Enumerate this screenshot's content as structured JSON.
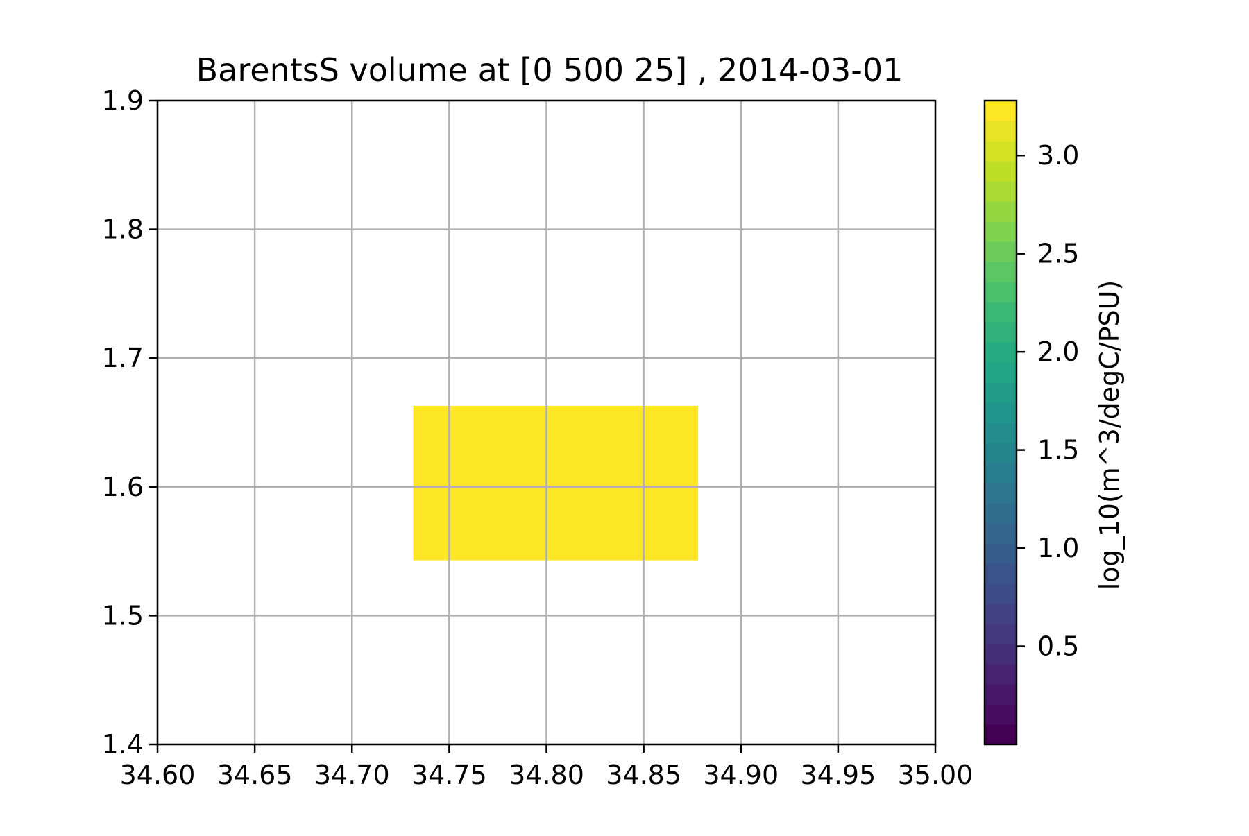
{
  "chart_data": {
    "type": "heatmap",
    "title": "BarentsS volume at [0 500 25] , 2014-03-01",
    "xlabel": "",
    "ylabel": "",
    "xlim": [
      34.6,
      35.0
    ],
    "ylim": [
      1.4,
      1.9
    ],
    "xticks": [
      "34.60",
      "34.65",
      "34.70",
      "34.75",
      "34.80",
      "34.85",
      "34.90",
      "34.95",
      "35.00"
    ],
    "yticks": [
      "1.4",
      "1.5",
      "1.6",
      "1.7",
      "1.8",
      "1.9"
    ],
    "grid": true,
    "cells": [
      {
        "x0": 34.7315,
        "x1": 34.878,
        "y0": 1.543,
        "y1": 1.663,
        "value": 3.28
      }
    ],
    "colorbar": {
      "label": "log_10(m^3/degC/PSU)",
      "range": [
        0.0,
        3.28
      ],
      "levels": 32,
      "ticks": [
        "0.5",
        "1.0",
        "1.5",
        "2.0",
        "2.5",
        "3.0"
      ],
      "colormap": "viridis"
    },
    "colors": {
      "cell_fill": "#fde725",
      "grid": "#b0b0b0",
      "axis": "#000000"
    }
  }
}
